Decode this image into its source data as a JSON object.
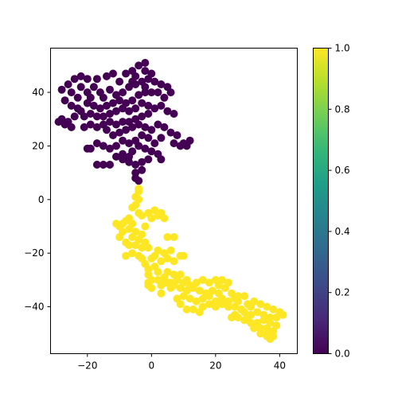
{
  "chart_data": {
    "type": "scatter",
    "title": "",
    "xlabel": "",
    "ylabel": "",
    "xlim": [
      -31.5,
      45.5
    ],
    "ylim": [
      -57.5,
      56.5
    ],
    "xticks": [
      -20,
      0,
      20,
      40
    ],
    "yticks": [
      -40,
      -20,
      0,
      20,
      40
    ],
    "grid": false,
    "colorbar": {
      "min": 0.0,
      "max": 1.0,
      "ticks": [
        "0.0",
        "0.2",
        "0.4",
        "0.6",
        "0.8",
        "1.0"
      ],
      "colormap": "viridis"
    },
    "clusters": [
      {
        "label_value": 0,
        "color": "#440154",
        "points": [
          [
            -4,
            50
          ],
          [
            -2,
            51
          ],
          [
            -2,
            48
          ],
          [
            -5,
            46
          ],
          [
            -6,
            48
          ],
          [
            -8,
            47
          ],
          [
            -12,
            47
          ],
          [
            -14,
            46
          ],
          [
            -17,
            45
          ],
          [
            -20,
            45
          ],
          [
            -22,
            46
          ],
          [
            -24,
            45
          ],
          [
            -26,
            43
          ],
          [
            -28,
            41
          ],
          [
            -25,
            40
          ],
          [
            -27,
            37
          ],
          [
            -25,
            35
          ],
          [
            -23,
            34
          ],
          [
            -22,
            42
          ],
          [
            -20,
            40
          ],
          [
            -18,
            42
          ],
          [
            -16,
            40
          ],
          [
            -15,
            38
          ],
          [
            -13,
            41
          ],
          [
            -11,
            39
          ],
          [
            -9,
            40
          ],
          [
            -7,
            42
          ],
          [
            -5,
            43
          ],
          [
            -3,
            44
          ],
          [
            -1,
            45
          ],
          [
            1,
            44
          ],
          [
            3,
            43
          ],
          [
            5,
            42
          ],
          [
            6,
            40
          ],
          [
            4,
            38
          ],
          [
            2,
            40
          ],
          [
            0,
            40
          ],
          [
            -2,
            40
          ],
          [
            -4,
            39
          ],
          [
            -6,
            37
          ],
          [
            -8,
            36
          ],
          [
            -10,
            37
          ],
          [
            -12,
            36
          ],
          [
            -14,
            35
          ],
          [
            -16,
            34
          ],
          [
            -18,
            35
          ],
          [
            -20,
            36
          ],
          [
            -22,
            33
          ],
          [
            -24,
            31
          ],
          [
            -26,
            29
          ],
          [
            -27,
            28
          ],
          [
            -29,
            29
          ],
          [
            -28,
            30
          ],
          [
            -21,
            31
          ],
          [
            -19,
            32
          ],
          [
            -17,
            31
          ],
          [
            -15,
            31
          ],
          [
            -13,
            32
          ],
          [
            -11,
            33
          ],
          [
            -9,
            34
          ],
          [
            -7,
            33
          ],
          [
            -5,
            34
          ],
          [
            -3,
            36
          ],
          [
            -1,
            35
          ],
          [
            1,
            34
          ],
          [
            3,
            35
          ],
          [
            5,
            33
          ],
          [
            7,
            32
          ],
          [
            -1,
            32
          ],
          [
            -3,
            31
          ],
          [
            -5,
            30
          ],
          [
            -7,
            29
          ],
          [
            -9,
            29
          ],
          [
            -11,
            28
          ],
          [
            -13,
            29
          ],
          [
            -15,
            28
          ],
          [
            -17,
            27
          ],
          [
            -19,
            28
          ],
          [
            -14,
            26
          ],
          [
            -12,
            24
          ],
          [
            -10,
            25
          ],
          [
            -8,
            26
          ],
          [
            -6,
            27
          ],
          [
            -4,
            28
          ],
          [
            -2,
            27
          ],
          [
            0,
            26
          ],
          [
            2,
            28
          ],
          [
            4,
            27
          ],
          [
            6,
            25
          ],
          [
            8,
            24
          ],
          [
            -1,
            23
          ],
          [
            -3,
            24
          ],
          [
            -5,
            22
          ],
          [
            -7,
            21
          ],
          [
            -9,
            22
          ],
          [
            -11,
            20
          ],
          [
            -13,
            19
          ],
          [
            -15,
            20
          ],
          [
            -17,
            21
          ],
          [
            -19,
            19
          ],
          [
            -20,
            19
          ],
          [
            -6,
            18
          ],
          [
            -4,
            20
          ],
          [
            -2,
            19
          ],
          [
            0,
            18
          ],
          [
            2,
            17
          ],
          [
            3,
            15
          ],
          [
            -1,
            15
          ],
          [
            -3,
            14
          ],
          [
            -5,
            13
          ],
          [
            -7,
            14
          ],
          [
            -9,
            15
          ],
          [
            -11,
            16
          ],
          [
            -13,
            13
          ],
          [
            -15,
            13
          ],
          [
            -17,
            13
          ],
          [
            -3,
            11
          ],
          [
            -5,
            10
          ],
          [
            -4,
            7
          ],
          [
            -5,
            8
          ],
          [
            7,
            21
          ],
          [
            9,
            20
          ],
          [
            11,
            20
          ],
          [
            12,
            22
          ],
          [
            10,
            21
          ],
          [
            -9,
            17
          ],
          [
            -7,
            16
          ],
          [
            1,
            21
          ],
          [
            3,
            23
          ],
          [
            -2,
            42
          ],
          [
            0,
            47
          ],
          [
            -6,
            44
          ],
          [
            -10,
            44
          ],
          [
            -19,
            38
          ],
          [
            -23,
            38
          ],
          [
            -21,
            27
          ],
          [
            -25,
            27
          ]
        ]
      },
      {
        "label_value": 1,
        "color": "#fde725",
        "points": [
          [
            -4,
            4
          ],
          [
            -4,
            3
          ],
          [
            -5,
            1
          ],
          [
            -4,
            0
          ],
          [
            -5,
            -2
          ],
          [
            -6,
            -3
          ],
          [
            -4,
            -5
          ],
          [
            -3,
            -6
          ],
          [
            -1,
            -5
          ],
          [
            1,
            -4
          ],
          [
            3,
            -5
          ],
          [
            2,
            -6
          ],
          [
            0,
            -7
          ],
          [
            4,
            -7
          ],
          [
            -7,
            -7
          ],
          [
            -8,
            -8
          ],
          [
            -9,
            -9
          ],
          [
            -10,
            -10
          ],
          [
            -11,
            -9
          ],
          [
            -9,
            -12
          ],
          [
            -7,
            -11
          ],
          [
            -5,
            -12
          ],
          [
            -6,
            -14
          ],
          [
            -4,
            -15
          ],
          [
            -3,
            -13
          ],
          [
            -2,
            -16
          ],
          [
            -1,
            -18
          ],
          [
            -3,
            -18
          ],
          [
            -5,
            -17
          ],
          [
            -7,
            -17
          ],
          [
            -6,
            -20
          ],
          [
            -8,
            -21
          ],
          [
            -4,
            -21
          ],
          [
            -3,
            -22
          ],
          [
            -2,
            -24
          ],
          [
            0,
            -22
          ],
          [
            1,
            -21
          ],
          [
            2,
            -19
          ],
          [
            4,
            -20
          ],
          [
            6,
            -19
          ],
          [
            5,
            -14
          ],
          [
            7,
            -14
          ],
          [
            9,
            -21
          ],
          [
            10,
            -21
          ],
          [
            7,
            -23
          ],
          [
            5,
            -22
          ],
          [
            3,
            -23
          ],
          [
            1,
            -25
          ],
          [
            -1,
            -26
          ],
          [
            -1,
            -28
          ],
          [
            0,
            -30
          ],
          [
            2,
            -27
          ],
          [
            4,
            -29
          ],
          [
            5,
            -27
          ],
          [
            7,
            -28
          ],
          [
            9,
            -28
          ],
          [
            8,
            -30
          ],
          [
            6,
            -31
          ],
          [
            4,
            -31
          ],
          [
            2,
            -30
          ],
          [
            -1,
            -31
          ],
          [
            -1,
            -32
          ],
          [
            0,
            -33
          ],
          [
            3,
            -32
          ],
          [
            5,
            -31
          ],
          [
            7,
            -32
          ],
          [
            9,
            -33
          ],
          [
            10,
            -31
          ],
          [
            11,
            -30
          ],
          [
            12,
            -32
          ],
          [
            14,
            -31
          ],
          [
            16,
            -30
          ],
          [
            18,
            -31
          ],
          [
            20,
            -30
          ],
          [
            21,
            -32
          ],
          [
            23,
            -33
          ],
          [
            24,
            -31
          ],
          [
            22,
            -30
          ],
          [
            19,
            -34
          ],
          [
            17,
            -35
          ],
          [
            15,
            -34
          ],
          [
            13,
            -33
          ],
          [
            11,
            -34
          ],
          [
            10,
            -36
          ],
          [
            12,
            -37
          ],
          [
            14,
            -38
          ],
          [
            16,
            -37
          ],
          [
            18,
            -36
          ],
          [
            20,
            -38
          ],
          [
            22,
            -37
          ],
          [
            24,
            -38
          ],
          [
            26,
            -37
          ],
          [
            27,
            -38
          ],
          [
            26,
            -40
          ],
          [
            24,
            -40
          ],
          [
            22,
            -39
          ],
          [
            20,
            -40
          ],
          [
            18,
            -39
          ],
          [
            16,
            -40
          ],
          [
            15,
            -42
          ],
          [
            13,
            -41
          ],
          [
            11,
            -41
          ],
          [
            9,
            -39
          ],
          [
            8,
            -37
          ],
          [
            21,
            -35
          ],
          [
            25,
            -35
          ],
          [
            27,
            -36
          ],
          [
            29,
            -36
          ],
          [
            30,
            -39
          ],
          [
            28,
            -41
          ],
          [
            26,
            -43
          ],
          [
            25,
            -44
          ],
          [
            27,
            -44
          ],
          [
            29,
            -42
          ],
          [
            31,
            -40
          ],
          [
            32,
            -38
          ],
          [
            34,
            -39
          ],
          [
            36,
            -40
          ],
          [
            38,
            -41
          ],
          [
            40,
            -42
          ],
          [
            41,
            -43
          ],
          [
            39,
            -44
          ],
          [
            37,
            -44
          ],
          [
            35,
            -43
          ],
          [
            33,
            -42
          ],
          [
            31,
            -43
          ],
          [
            30,
            -44
          ],
          [
            29,
            -45
          ],
          [
            31,
            -46
          ],
          [
            33,
            -46
          ],
          [
            35,
            -45
          ],
          [
            37,
            -46
          ],
          [
            39,
            -47
          ],
          [
            38,
            -49
          ],
          [
            36,
            -48
          ],
          [
            34,
            -48
          ],
          [
            32,
            -48
          ],
          [
            34,
            -50
          ],
          [
            36,
            -50
          ],
          [
            38,
            -51
          ],
          [
            37,
            -52
          ],
          [
            36,
            -51
          ],
          [
            -8,
            -16
          ],
          [
            -6,
            -9
          ],
          [
            -2,
            -10
          ],
          [
            -10,
            -14
          ],
          [
            6,
            -33
          ],
          [
            3,
            -35
          ]
        ]
      }
    ]
  }
}
